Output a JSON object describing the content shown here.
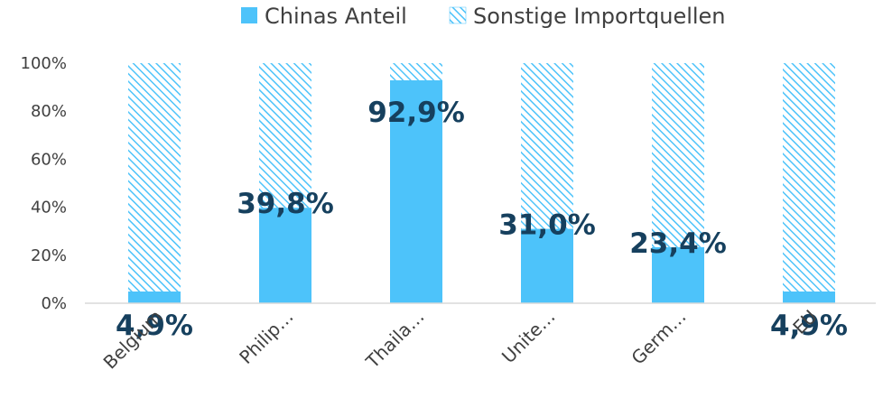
{
  "chart_data": {
    "type": "bar",
    "stacked": true,
    "title": "",
    "xlabel": "",
    "ylabel": "",
    "categories": [
      "Belgium",
      "Philip…",
      "Thaila…",
      "Unite…",
      "Germ…",
      "EU"
    ],
    "series": [
      {
        "name": "Chinas Anteil",
        "values": [
          4.9,
          39.8,
          92.9,
          31.0,
          23.4,
          4.9
        ],
        "labels": [
          "4,9%",
          "39,8%",
          "92,9%",
          "31,0%",
          "23,4%",
          "4,9%"
        ],
        "color": "#4DC3FA",
        "pattern": "solid"
      },
      {
        "name": "Sonstige Importquellen",
        "values": [
          95.1,
          60.2,
          7.1,
          69.0,
          76.6,
          95.1
        ],
        "color": "#4DC3FA",
        "pattern": "diagonal-hatch"
      }
    ],
    "yticks": [
      "0%",
      "20%",
      "40%",
      "60%",
      "80%",
      "100%"
    ],
    "ylim": [
      0,
      100
    ],
    "grid": false,
    "legend": "top-center",
    "title_color": "#1EA7E8",
    "label_color": "#16405E"
  }
}
